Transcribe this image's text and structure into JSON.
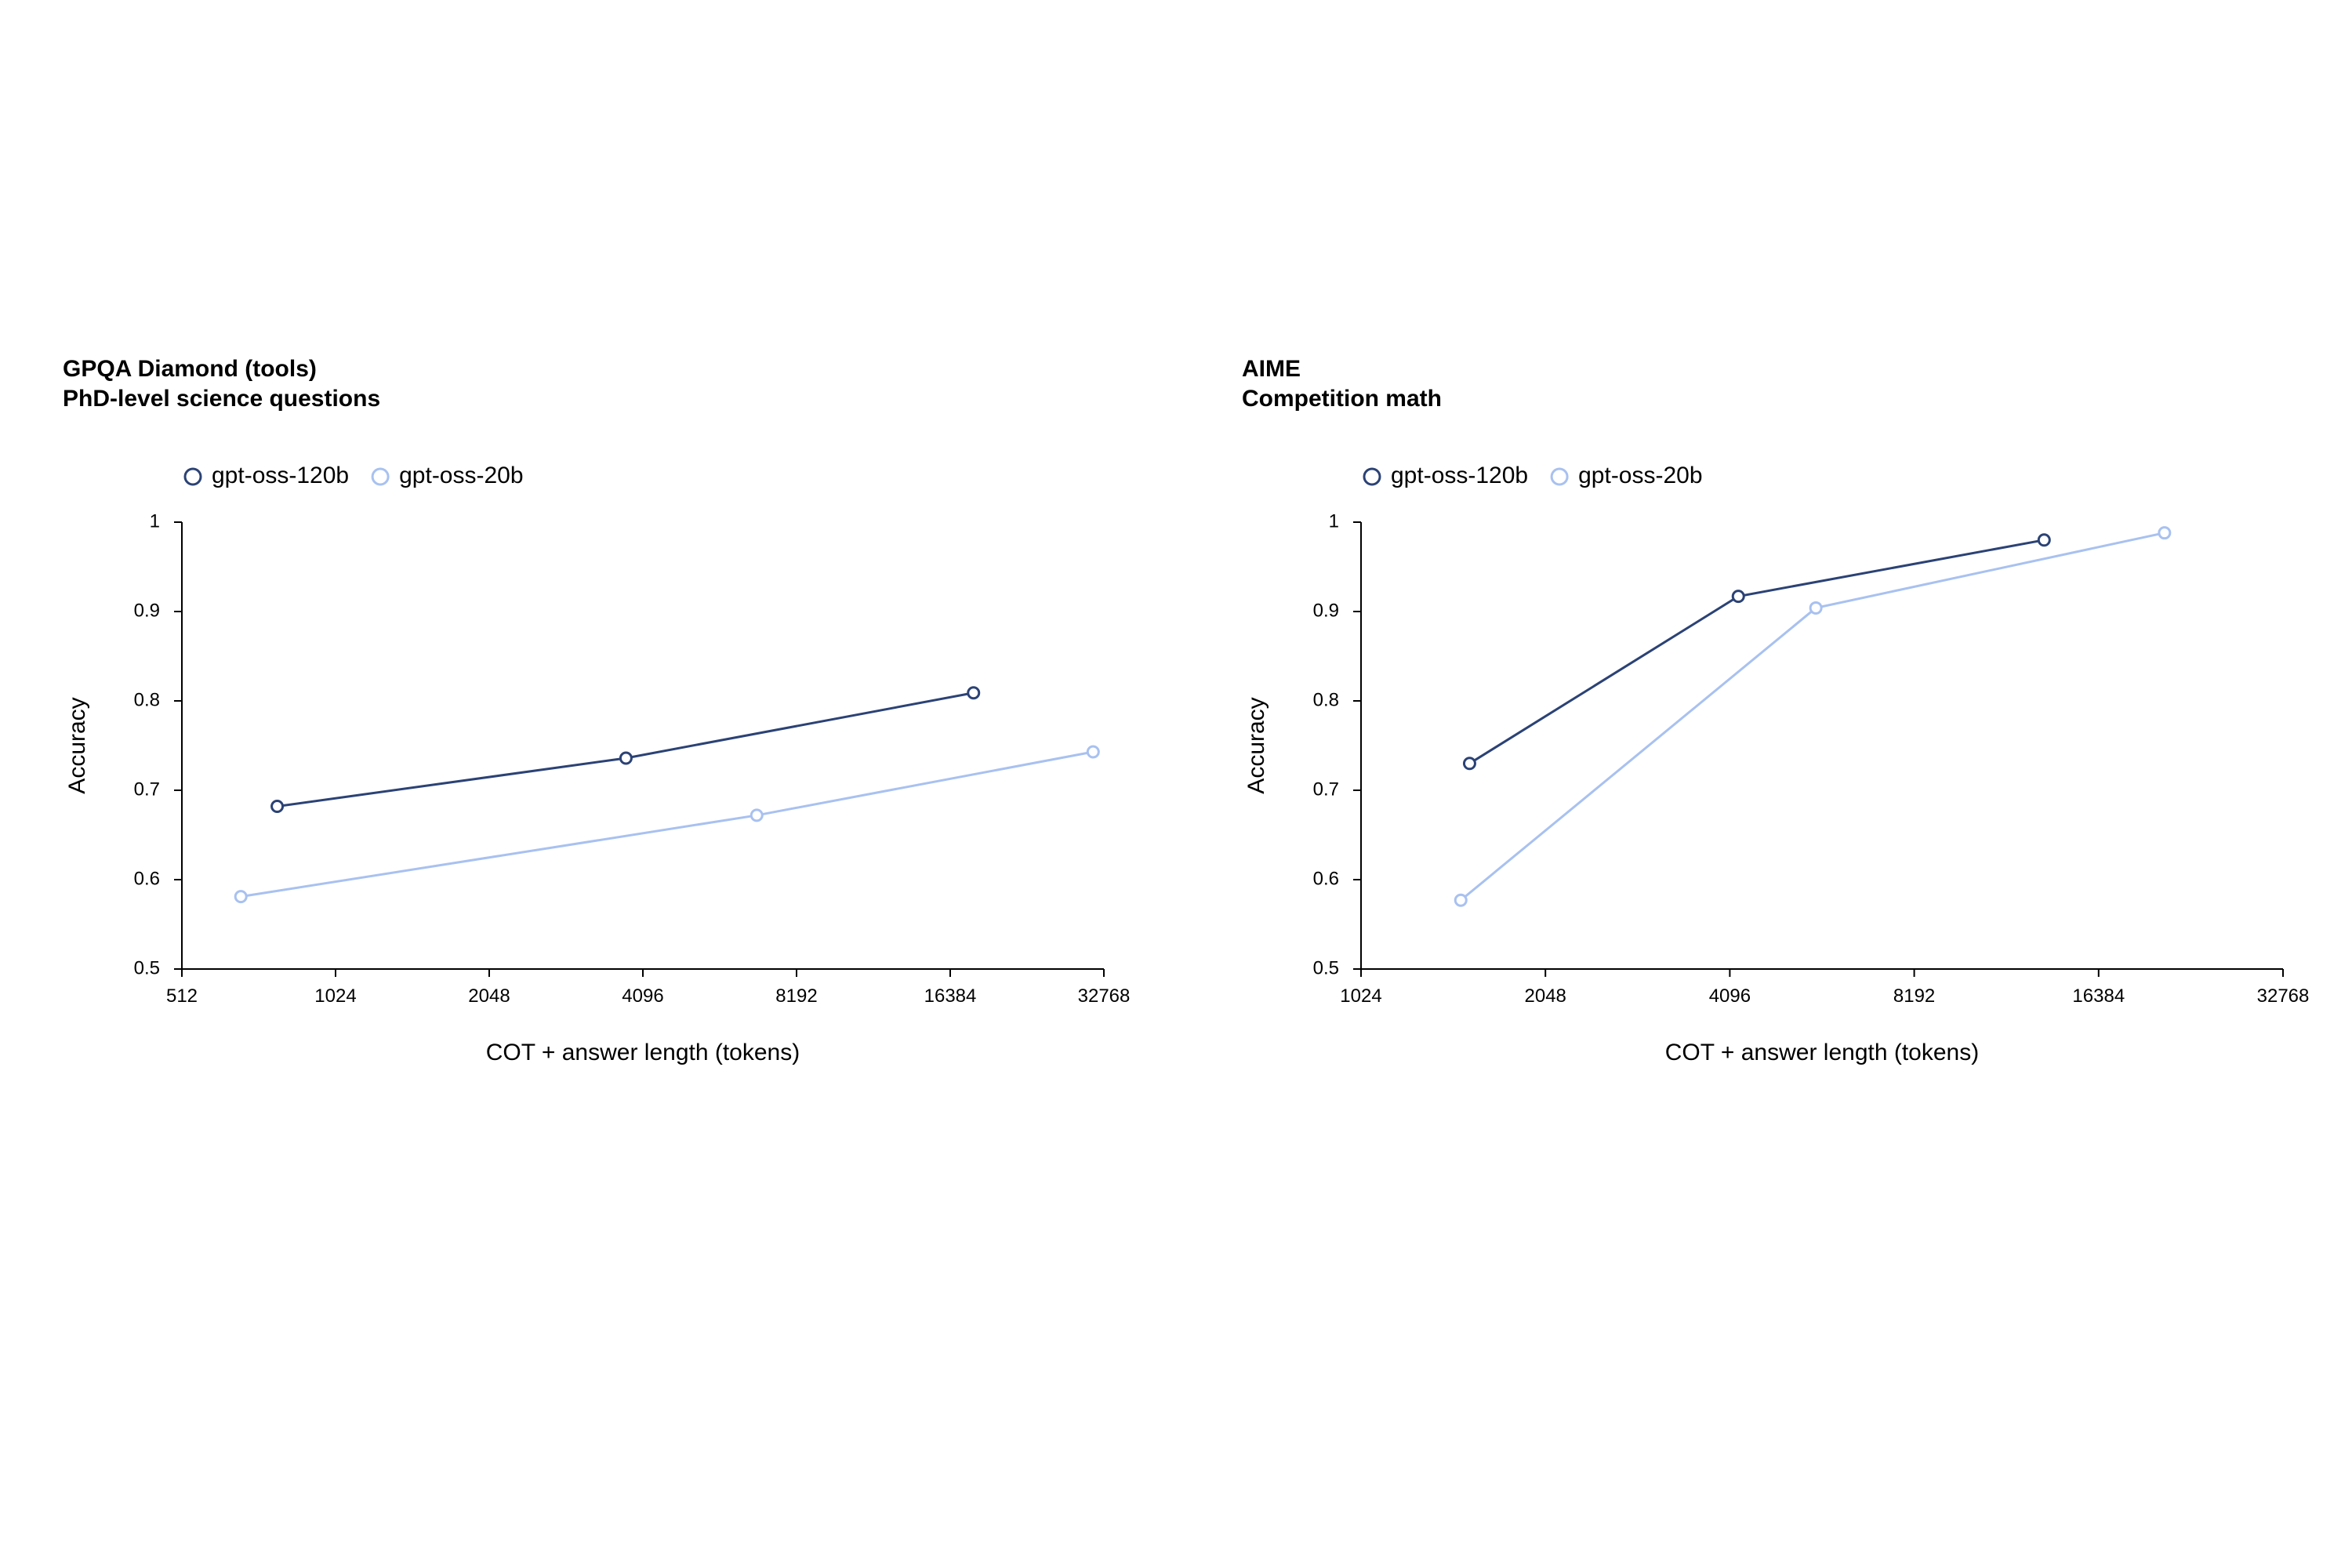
{
  "colors": {
    "gpt-oss-120b": "#2b4275",
    "gpt-oss-20b": "#a8c1f0",
    "axis": "#000000"
  },
  "chart_data": [
    {
      "type": "line",
      "title": "GPQA Diamond (tools)",
      "subtitle": "PhD-level science questions",
      "xlabel": "COT + answer length (tokens)",
      "ylabel": "Accuracy",
      "xscale": "log2",
      "xlim": [
        512,
        32768
      ],
      "xticks": [
        512,
        1024,
        2048,
        4096,
        8192,
        16384,
        32768
      ],
      "xtick_labels": [
        "512",
        "1024",
        "2048",
        "4096",
        "8192",
        "16384",
        "32768"
      ],
      "ylim": [
        0.5,
        1
      ],
      "yticks": [
        0.5,
        0.6,
        0.7,
        0.8,
        0.9,
        1
      ],
      "ytick_labels": [
        "0.5",
        "0.6",
        "0.7",
        "0.8",
        "0.9",
        "1"
      ],
      "grid": false,
      "legend": "top-left",
      "series": [
        {
          "name": "gpt-oss-120b",
          "x": [
            787,
            3795,
            18202
          ],
          "y": [
            0.682,
            0.736,
            0.809
          ]
        },
        {
          "name": "gpt-oss-20b",
          "x": [
            668,
            6846,
            31220
          ],
          "y": [
            0.581,
            0.672,
            0.743
          ]
        }
      ]
    },
    {
      "type": "line",
      "title": "AIME",
      "subtitle": "Competition math",
      "xlabel": "COT + answer length (tokens)",
      "ylabel": "Accuracy",
      "xscale": "log2",
      "xlim": [
        1024,
        32768
      ],
      "xticks": [
        1024,
        2048,
        4096,
        8192,
        16384,
        32768
      ],
      "xtick_labels": [
        "1024",
        "2048",
        "4096",
        "8192",
        "16384",
        "32768"
      ],
      "ylim": [
        0.5,
        1
      ],
      "yticks": [
        0.5,
        0.6,
        0.7,
        0.8,
        0.9,
        1
      ],
      "ytick_labels": [
        "0.5",
        "0.6",
        "0.7",
        "0.8",
        "0.9",
        "1"
      ],
      "grid": false,
      "legend": "top-left",
      "series": [
        {
          "name": "gpt-oss-120b",
          "x": [
            1540,
            4229,
            13350
          ],
          "y": [
            0.73,
            0.917,
            0.98
          ]
        },
        {
          "name": "gpt-oss-20b",
          "x": [
            1490,
            5660,
            20990
          ],
          "y": [
            0.577,
            0.904,
            0.988
          ]
        }
      ]
    }
  ]
}
